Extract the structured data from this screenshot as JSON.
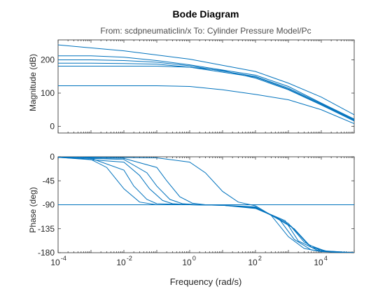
{
  "chart_data": {
    "type": "line",
    "title": "Bode Diagram",
    "subtitle": "From: scdpneumaticlin/x  To: Cylinder Pressure Model/Pc",
    "xlabel": "Frequency (rad/s)",
    "xscale": "log",
    "xlim": [
      0.0001,
      100000
    ],
    "xticks": [
      {
        "base": "10",
        "exp": "-4",
        "value": 0.0001
      },
      {
        "base": "10",
        "exp": "-2",
        "value": 0.01
      },
      {
        "base": "10",
        "exp": "0",
        "value": 1
      },
      {
        "base": "10",
        "exp": "2",
        "value": 100
      },
      {
        "base": "10",
        "exp": "4",
        "value": 10000
      }
    ],
    "series_color": "#0072bd",
    "grid": false,
    "panels": [
      {
        "name": "magnitude",
        "ylabel": "Magnitude (dB)",
        "ylim": [
          -20,
          260
        ],
        "yticks": [
          {
            "label": "0",
            "value": 0
          },
          {
            "label": "100",
            "value": 100
          },
          {
            "label": "200",
            "value": 200
          }
        ],
        "series": [
          {
            "x": [
              0.0001,
              0.01,
              1,
              100,
              1000,
              10000,
              100000
            ],
            "y": [
              245,
              227,
              202,
              165,
              130,
              88,
              35
            ]
          },
          {
            "x": [
              0.0001,
              0.001,
              0.01,
              0.1,
              1,
              100,
              1000,
              10000,
              100000
            ],
            "y": [
              212,
              212,
              208,
              198,
              185,
              154,
              120,
              70,
              22
            ]
          },
          {
            "x": [
              0.0001,
              0.001,
              0.01,
              0.1,
              1,
              100,
              1000,
              10000,
              100000
            ],
            "y": [
              200,
              200,
              198,
              193,
              182,
              150,
              115,
              68,
              20
            ]
          },
          {
            "x": [
              0.0001,
              0.001,
              0.01,
              0.1,
              1,
              100,
              1000,
              10000,
              100000
            ],
            "y": [
              190,
              190,
              189,
              187,
              178,
              148,
              112,
              66,
              18
            ]
          },
          {
            "x": [
              0.0001,
              0.01,
              0.1,
              1,
              10,
              100,
              1000,
              10000,
              100000
            ],
            "y": [
              181,
              181,
              181,
              178,
              168,
              145,
              110,
              64,
              16
            ]
          },
          {
            "x": [
              0.0001,
              0.01,
              0.1,
              1,
              10,
              100,
              1000,
              10000,
              100000
            ],
            "y": [
              122,
              122,
              122,
              120,
              110,
              96,
              80,
              50,
              8
            ]
          }
        ]
      },
      {
        "name": "phase",
        "ylabel": "Phase (deg)",
        "ylim": [
          -180,
          0
        ],
        "yticks": [
          {
            "label": "0",
            "value": 0
          },
          {
            "label": "-45",
            "value": -45
          },
          {
            "label": "-90",
            "value": -90
          },
          {
            "label": "-135",
            "value": -135
          },
          {
            "label": "-180",
            "value": -180
          }
        ],
        "series": [
          {
            "x": [
              0.0001,
              100000
            ],
            "y": [
              -90,
              -90
            ]
          },
          {
            "x": [
              0.0001,
              0.001,
              0.003,
              0.01,
              0.03,
              0.1,
              1,
              10,
              100,
              300,
              1000,
              3000,
              10000,
              100000
            ],
            "y": [
              -1,
              -5,
              -20,
              -60,
              -85,
              -90,
              -90,
              -91,
              -95,
              -110,
              -150,
              -172,
              -178,
              -180
            ]
          },
          {
            "x": [
              0.0001,
              0.001,
              0.01,
              0.02,
              0.05,
              0.1,
              1,
              10,
              100,
              500,
              1500,
              5000,
              100000
            ],
            "y": [
              -1,
              -3,
              -25,
              -55,
              -80,
              -88,
              -90,
              -91,
              -97,
              -115,
              -155,
              -175,
              -180
            ]
          },
          {
            "x": [
              0.0001,
              0.01,
              0.03,
              0.06,
              0.15,
              0.3,
              1,
              10,
              100,
              800,
              2000,
              8000,
              100000
            ],
            "y": [
              -1,
              -10,
              -35,
              -60,
              -82,
              -88,
              -90,
              -91,
              -96,
              -120,
              -158,
              -176,
              -180
            ]
          },
          {
            "x": [
              0.0001,
              0.01,
              0.05,
              0.1,
              0.25,
              0.6,
              2,
              10,
              100,
              1000,
              3000,
              10000,
              100000
            ],
            "y": [
              -1,
              -5,
              -30,
              -55,
              -80,
              -88,
              -90,
              -91,
              -95,
              -125,
              -160,
              -177,
              -180
            ]
          },
          {
            "x": [
              0.0001,
              0.01,
              0.1,
              0.2,
              0.5,
              1.2,
              3,
              10,
              100,
              1200,
              4000,
              15000,
              100000
            ],
            "y": [
              -1,
              -3,
              -20,
              -45,
              -75,
              -87,
              -90,
              -91,
              -94,
              -130,
              -165,
              -178,
              -180
            ]
          },
          {
            "x": [
              0.0001,
              0.1,
              1,
              3,
              10,
              30,
              100,
              1500,
              5000,
              20000,
              100000
            ],
            "y": [
              0,
              -2,
              -10,
              -30,
              -65,
              -85,
              -92,
              -135,
              -170,
              -179,
              -180
            ]
          }
        ]
      }
    ]
  }
}
